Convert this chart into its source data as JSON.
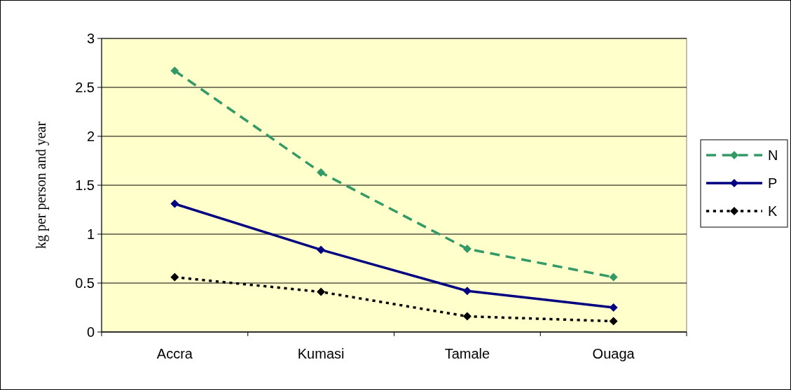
{
  "chart_data": {
    "type": "line",
    "ylabel": "kg per person and year",
    "categories": [
      "Accra",
      "Kumasi",
      "Tamale",
      "Ouaga"
    ],
    "series": [
      {
        "name": "N",
        "color": "#339966",
        "line_style": "dashed",
        "values": [
          2.67,
          1.63,
          0.85,
          0.56
        ]
      },
      {
        "name": "P",
        "color": "#000080",
        "line_style": "solid",
        "values": [
          1.31,
          0.84,
          0.42,
          0.25
        ]
      },
      {
        "name": "K",
        "color": "#000000",
        "line_style": "dotted",
        "values": [
          0.56,
          0.41,
          0.16,
          0.11
        ]
      }
    ],
    "ylim": [
      0,
      3
    ],
    "yticks": [
      0,
      0.5,
      1,
      1.5,
      2,
      2.5,
      3
    ],
    "grid": "y",
    "legend": "right",
    "marker": "diamond"
  }
}
